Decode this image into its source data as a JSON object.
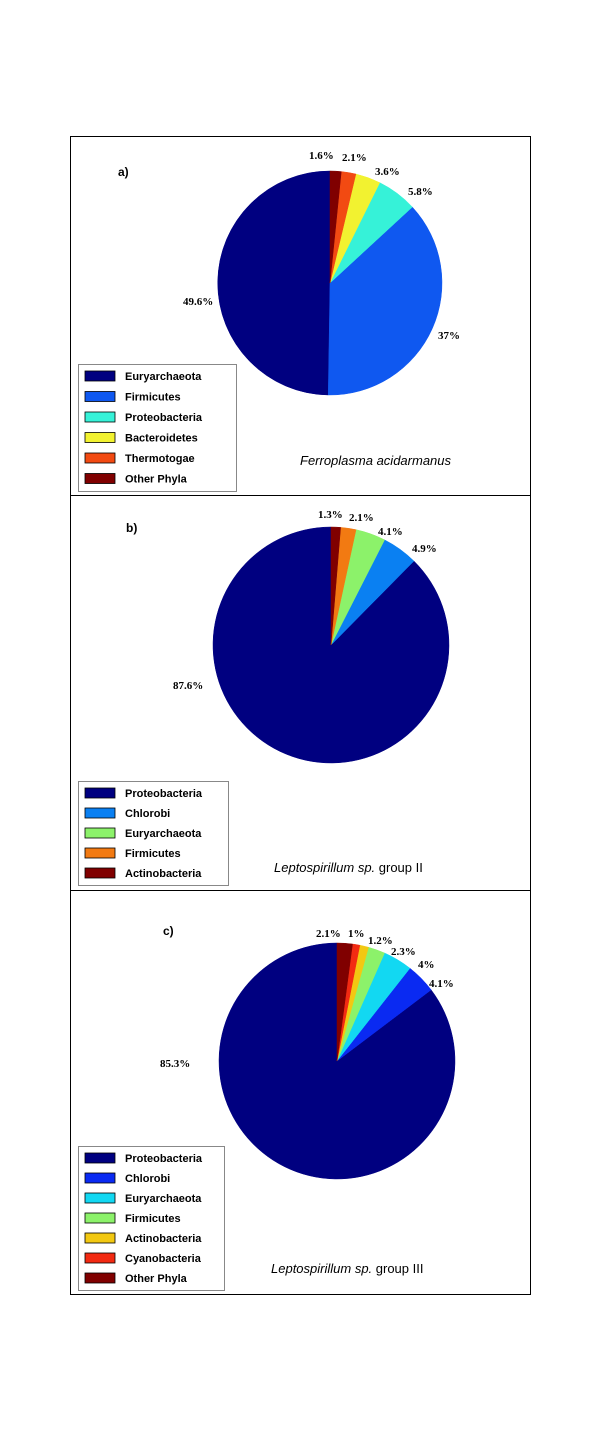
{
  "chart_data": [
    {
      "type": "pie",
      "panel": "a)",
      "caption": {
        "italic": "Ferroplasma acidarmanus",
        "rest": ""
      },
      "slices": [
        {
          "name": "Euryarchaeota",
          "value": 49.6,
          "label": "49.6%",
          "color": "#000080"
        },
        {
          "name": "Firmicutes",
          "value": 37,
          "label": "37%",
          "color": "#0F58F0"
        },
        {
          "name": "Proteobacteria",
          "value": 5.8,
          "label": "5.8%",
          "color": "#36F2D8"
        },
        {
          "name": "Bacteroidetes",
          "value": 3.6,
          "label": "3.6%",
          "color": "#F2F230"
        },
        {
          "name": "Thermotogae",
          "value": 2.1,
          "label": "2.1%",
          "color": "#F24A12"
        },
        {
          "name": "Other Phyla",
          "value": 1.6,
          "label": "1.6%",
          "color": "#800000"
        }
      ]
    },
    {
      "type": "pie",
      "panel": "b)",
      "caption": {
        "italic": "Leptospirillum sp.",
        "rest": " group II"
      },
      "slices": [
        {
          "name": "Proteobacteria",
          "value": 87.6,
          "label": "87.6%",
          "color": "#000080"
        },
        {
          "name": "Chlorobi",
          "value": 4.9,
          "label": "4.9%",
          "color": "#0A80F2"
        },
        {
          "name": "Euryarchaeota",
          "value": 4.1,
          "label": "4.1%",
          "color": "#8CF26A"
        },
        {
          "name": "Firmicutes",
          "value": 2.1,
          "label": "2.1%",
          "color": "#F27A12"
        },
        {
          "name": "Actinobacteria",
          "value": 1.3,
          "label": "1.3%",
          "color": "#800000"
        }
      ]
    },
    {
      "type": "pie",
      "panel": "c)",
      "caption": {
        "italic": "Leptospirillum sp.",
        "rest": " group III"
      },
      "slices": [
        {
          "name": "Proteobacteria",
          "value": 85.3,
          "label": "85.3%",
          "color": "#000080"
        },
        {
          "name": "Chlorobi",
          "value": 4.1,
          "label": "4.1%",
          "color": "#0A2AF2"
        },
        {
          "name": "Euryarchaeota",
          "value": 4,
          "label": "4%",
          "color": "#12D8F2"
        },
        {
          "name": "Firmicutes",
          "value": 2.3,
          "label": "2.3%",
          "color": "#8CF26A"
        },
        {
          "name": "Actinobacteria",
          "value": 1.2,
          "label": "1.2%",
          "color": "#F2C812"
        },
        {
          "name": "Cyanobacteria",
          "value": 1,
          "label": "1%",
          "color": "#F22A12"
        },
        {
          "name": "Other Phyla",
          "value": 2.1,
          "label": "2.1%",
          "color": "#800000"
        }
      ]
    }
  ]
}
